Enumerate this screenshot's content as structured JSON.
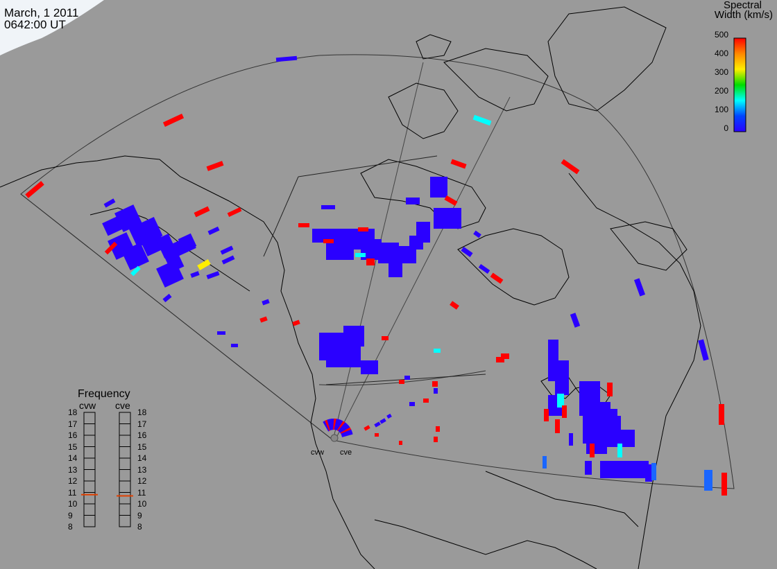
{
  "header": {
    "date": "March, 1 2011",
    "time": "0642:00 UT"
  },
  "colorbar": {
    "title_line1": "Spectral",
    "title_line2": "Width (km/s)",
    "ticks": [
      "500",
      "400",
      "300",
      "200",
      "100",
      "0"
    ],
    "colors": [
      "#ff0000",
      "#ff8800",
      "#ffee00",
      "#00dd00",
      "#00ffff",
      "#0044ff",
      "#2a00ff"
    ]
  },
  "frequency_panel": {
    "title": "Frequency",
    "columns": [
      {
        "name": "cvw",
        "current_mhz": 10.8
      },
      {
        "name": "cve",
        "current_mhz": 10.7
      }
    ],
    "labels": [
      "18",
      "17",
      "16",
      "15",
      "14",
      "13",
      "12",
      "11",
      "10",
      "9",
      "8"
    ],
    "indicator_color": "#e04000"
  },
  "radars": {
    "west": "cvw",
    "east": "cve"
  },
  "colors": {
    "background": "#9a9a9a",
    "coast": "#000000",
    "fov": "#333333",
    "night_shading": "#f0f4f8"
  }
}
